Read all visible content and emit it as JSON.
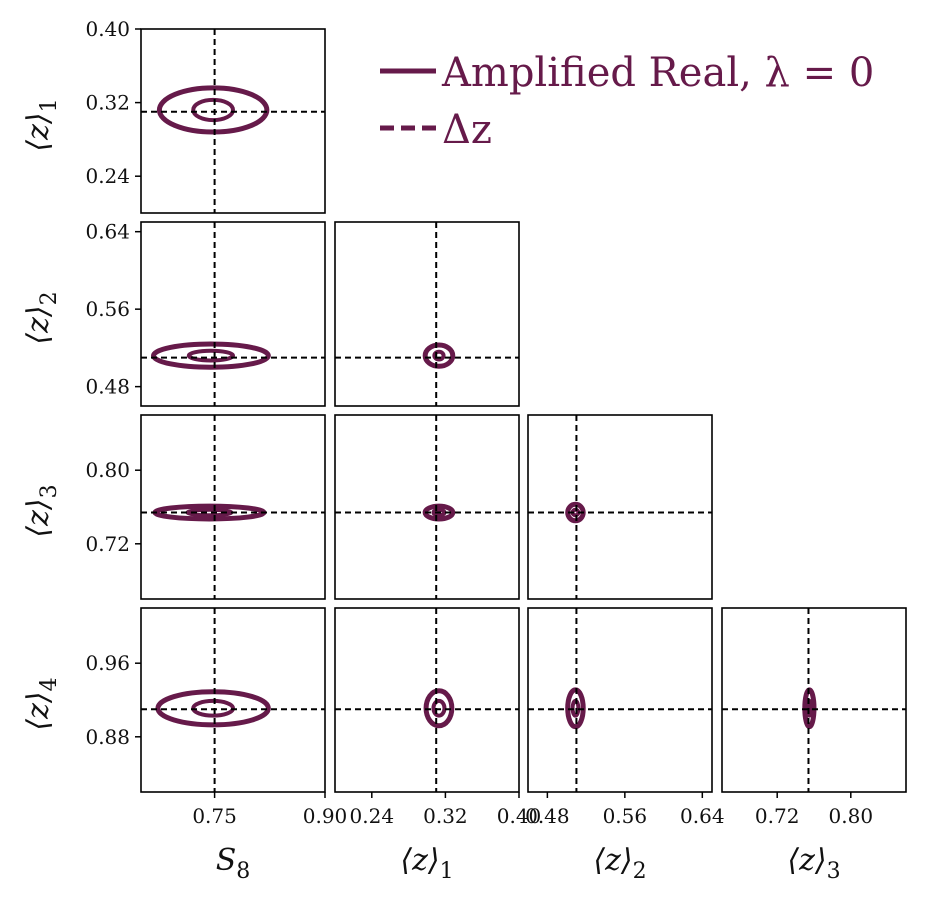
{
  "chart_data": {
    "type": "scatter",
    "subtype": "corner-contour",
    "parameters": [
      "S_8",
      "<z>_1",
      "<z>_2",
      "<z>_3",
      "<z>_4"
    ],
    "parameter_labels": [
      {
        "main": "S",
        "sub": "8"
      },
      {
        "main": "⟨z⟩",
        "sub": "1"
      },
      {
        "main": "⟨z⟩",
        "sub": "2"
      },
      {
        "main": "⟨z⟩",
        "sub": "3"
      },
      {
        "main": "⟨z⟩",
        "sub": "4"
      }
    ],
    "ranges": [
      [
        0.65,
        0.9
      ],
      [
        0.2,
        0.4
      ],
      [
        0.46,
        0.65
      ],
      [
        0.66,
        0.86
      ],
      [
        0.82,
        1.02
      ]
    ],
    "ticks": [
      {
        "values": [
          0.75,
          0.9
        ],
        "labels": [
          "0.75",
          "0.90"
        ]
      },
      {
        "values": [
          0.24,
          0.32,
          0.4
        ],
        "labels": [
          "0.24",
          "0.32",
          "0.40"
        ]
      },
      {
        "values": [
          0.48,
          0.56,
          0.64
        ],
        "labels": [
          "0.48",
          "0.56",
          "0.64"
        ]
      },
      {
        "values": [
          0.72,
          0.8
        ],
        "labels": [
          "0.72",
          "0.80"
        ]
      },
      {
        "values": [
          0.88,
          0.96
        ],
        "labels": [
          "0.88",
          "0.96"
        ]
      }
    ],
    "truth_values": [
      0.75,
      0.31,
      0.51,
      0.754,
      0.91
    ],
    "contour_color": "#661a4a",
    "contours": [
      {
        "x": 0,
        "y": 1,
        "center": [
          0.748,
          0.312
        ],
        "outer": [
          0.073,
          0.024
        ],
        "inner": [
          0.027,
          0.011
        ]
      },
      {
        "x": 0,
        "y": 2,
        "center": [
          0.745,
          0.512
        ],
        "outer": [
          0.078,
          0.012
        ],
        "inner": [
          0.03,
          0.005
        ]
      },
      {
        "x": 1,
        "y": 2,
        "center": [
          0.313,
          0.512
        ],
        "outer": [
          0.015,
          0.011
        ],
        "inner": [
          0.005,
          0.004
        ]
      },
      {
        "x": 0,
        "y": 3,
        "center": [
          0.743,
          0.754
        ],
        "outer": [
          0.074,
          0.007
        ],
        "inner": [
          0.03,
          0.003
        ]
      },
      {
        "x": 1,
        "y": 3,
        "center": [
          0.313,
          0.754
        ],
        "outer": [
          0.015,
          0.007
        ],
        "inner": [
          0.006,
          0.003
        ]
      },
      {
        "x": 2,
        "y": 3,
        "center": [
          0.509,
          0.754
        ],
        "outer": [
          0.008,
          0.009
        ],
        "inner": [
          0.003,
          0.003
        ]
      },
      {
        "x": 0,
        "y": 4,
        "center": [
          0.748,
          0.911
        ],
        "outer": [
          0.075,
          0.018
        ],
        "inner": [
          0.027,
          0.008
        ]
      },
      {
        "x": 1,
        "y": 4,
        "center": [
          0.313,
          0.911
        ],
        "outer": [
          0.014,
          0.019
        ],
        "inner": [
          0.006,
          0.008
        ]
      },
      {
        "x": 2,
        "y": 4,
        "center": [
          0.509,
          0.911
        ],
        "outer": [
          0.008,
          0.02
        ],
        "inner": [
          0.003,
          0.008
        ]
      },
      {
        "x": 3,
        "y": 4,
        "center": [
          0.755,
          0.911
        ],
        "outer": [
          0.005,
          0.02
        ],
        "inner": [
          0.002,
          0.008
        ]
      }
    ],
    "legend": {
      "position": "top-right",
      "entries": [
        {
          "label": "Amplified Real, λ = 0",
          "style": "solid"
        },
        {
          "label": "Δz",
          "style": "dashed"
        }
      ]
    },
    "grid": false
  }
}
